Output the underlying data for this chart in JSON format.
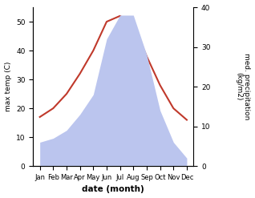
{
  "months": [
    "Jan",
    "Feb",
    "Mar",
    "Apr",
    "May",
    "Jun",
    "Jul",
    "Aug",
    "Sep",
    "Oct",
    "Nov",
    "Dec"
  ],
  "month_x": [
    0,
    1,
    2,
    3,
    4,
    5,
    6,
    7,
    8,
    9,
    10,
    11
  ],
  "temperature": [
    17,
    20,
    25,
    32,
    40,
    50,
    52,
    49,
    38,
    28,
    20,
    16
  ],
  "precipitation": [
    6,
    7,
    9,
    13,
    18,
    32,
    38,
    38,
    28,
    14,
    6,
    2
  ],
  "temp_color": "#c0392b",
  "precip_fill_color": "#bbc5ee",
  "ylabel_left": "max temp (C)",
  "ylabel_right": "med. precipitation\n(kg/m2)",
  "xlabel": "date (month)",
  "ylim_left": [
    0,
    55
  ],
  "ylim_right": [
    0,
    40
  ],
  "yticks_left": [
    0,
    10,
    20,
    30,
    40,
    50
  ],
  "yticks_right": [
    0,
    10,
    20,
    30,
    40
  ]
}
